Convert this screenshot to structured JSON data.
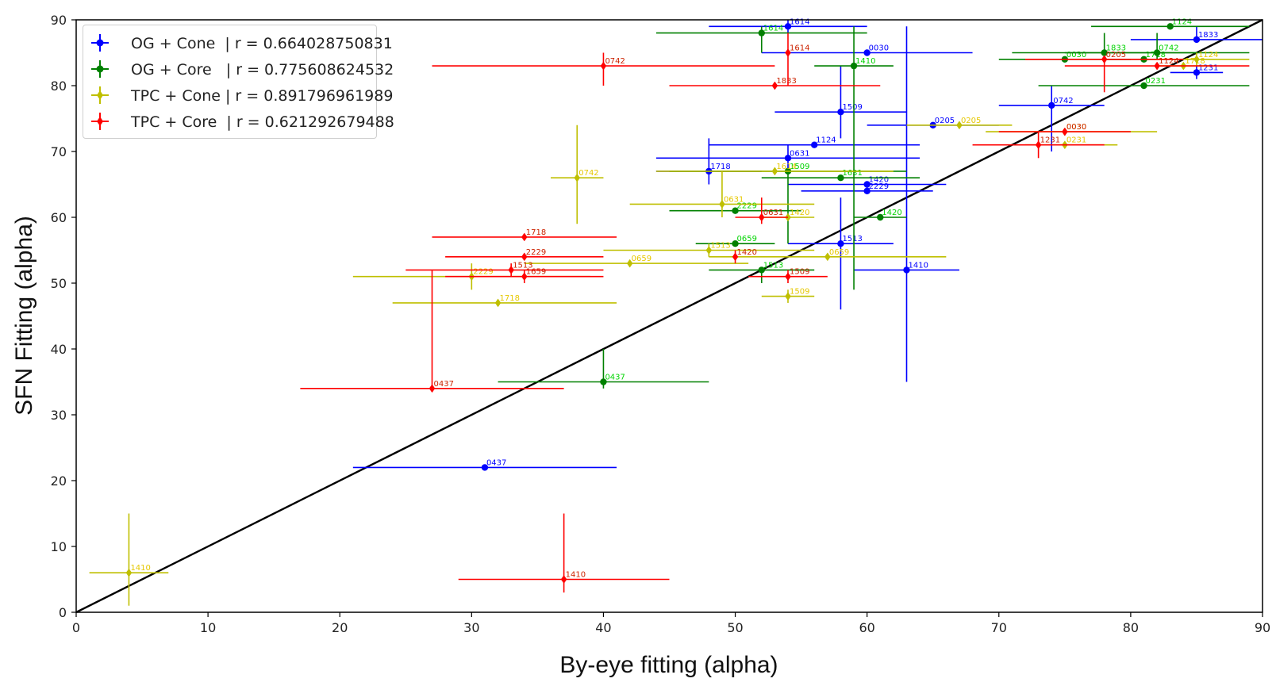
{
  "chart_data": {
    "type": "scatter",
    "title": "",
    "xlabel": "By-eye fitting (alpha)",
    "ylabel": "SFN Fitting (alpha)",
    "xlim": [
      0,
      90
    ],
    "ylim": [
      0,
      90
    ],
    "xticks": [
      "0",
      "10",
      "20",
      "30",
      "40",
      "50",
      "60",
      "70",
      "80",
      "90"
    ],
    "yticks": [
      "0",
      "10",
      "20",
      "30",
      "40",
      "50",
      "60",
      "70",
      "80",
      "90"
    ],
    "legend_position": "top-left",
    "reference_line": {
      "from": [
        0,
        0
      ],
      "to": [
        90,
        90
      ],
      "color": "#000000"
    },
    "series": [
      {
        "name": "OG + Cone  | r = 0.664028750831",
        "color": "#0000ff",
        "label_color": "#0000ff",
        "marker": "circle",
        "points": [
          {
            "label": "0437",
            "x": 31,
            "y": 22,
            "xerr": [
              10,
              10
            ],
            "yerr": [
              0,
              0
            ]
          },
          {
            "label": "1718",
            "x": 48,
            "y": 67,
            "xerr": [
              4,
              4
            ],
            "yerr": [
              2,
              5
            ]
          },
          {
            "label": "0631",
            "x": 54,
            "y": 69,
            "xerr": [
              10,
              10
            ],
            "yerr": [
              2,
              2
            ]
          },
          {
            "label": "1614",
            "x": 54,
            "y": 89,
            "xerr": [
              6,
              6
            ],
            "yerr": [
              1,
              1
            ]
          },
          {
            "label": "1124",
            "x": 56,
            "y": 71,
            "xerr": [
              8,
              8
            ],
            "yerr": [
              0,
              0
            ]
          },
          {
            "label": "1509",
            "x": 58,
            "y": 76,
            "xerr": [
              5,
              5
            ],
            "yerr": [
              4,
              7
            ]
          },
          {
            "label": "1513",
            "x": 58,
            "y": 56,
            "xerr": [
              4,
              4
            ],
            "yerr": [
              10,
              7
            ]
          },
          {
            "label": "0030",
            "x": 60,
            "y": 85,
            "xerr": [
              8,
              8
            ],
            "yerr": [
              0,
              0
            ]
          },
          {
            "label": "1420",
            "x": 60,
            "y": 65,
            "xerr": [
              6,
              6
            ],
            "yerr": [
              0,
              0
            ]
          },
          {
            "label": "2229",
            "x": 60,
            "y": 64,
            "xerr": [
              5,
              5
            ],
            "yerr": [
              0,
              0
            ]
          },
          {
            "label": "1410",
            "x": 63,
            "y": 52,
            "xerr": [
              4,
              4
            ],
            "yerr": [
              17,
              37
            ]
          },
          {
            "label": "0205",
            "x": 65,
            "y": 74,
            "xerr": [
              5,
              5
            ],
            "yerr": [
              0,
              0
            ]
          },
          {
            "label": "0742",
            "x": 74,
            "y": 77,
            "xerr": [
              4,
              4
            ],
            "yerr": [
              7,
              3
            ]
          },
          {
            "label": "1833",
            "x": 85,
            "y": 87,
            "xerr": [
              5,
              5
            ],
            "yerr": [
              0,
              2
            ]
          },
          {
            "label": "1231",
            "x": 85,
            "y": 82,
            "xerr": [
              2,
              2
            ],
            "yerr": [
              1,
              1
            ]
          }
        ]
      },
      {
        "name": "OG + Core   | r = 0.775608624532",
        "color": "#008000",
        "label_color": "#00d400",
        "marker": "circle",
        "points": [
          {
            "label": "0437",
            "x": 40,
            "y": 35,
            "xerr": [
              8,
              8
            ],
            "yerr": [
              1,
              5
            ]
          },
          {
            "label": "0659",
            "x": 50,
            "y": 56,
            "xerr": [
              3,
              3
            ],
            "yerr": [
              0,
              0
            ]
          },
          {
            "label": "2229",
            "x": 50,
            "y": 61,
            "xerr": [
              5,
              5
            ],
            "yerr": [
              0,
              0
            ]
          },
          {
            "label": "1513",
            "x": 52,
            "y": 52,
            "xerr": [
              4,
              4
            ],
            "yerr": [
              2,
              0
            ]
          },
          {
            "label": "1614",
            "x": 52,
            "y": 88,
            "xerr": [
              8,
              8
            ],
            "yerr": [
              3,
              1
            ]
          },
          {
            "label": "1509",
            "x": 54,
            "y": 67,
            "xerr": [
              9,
              9
            ],
            "yerr": [
              11,
              0
            ]
          },
          {
            "label": "1631",
            "x": 58,
            "y": 66,
            "xerr": [
              6,
              6
            ],
            "yerr": [
              0,
              0
            ]
          },
          {
            "label": "1410",
            "x": 59,
            "y": 83,
            "xerr": [
              3,
              3
            ],
            "yerr": [
              34,
              6
            ]
          },
          {
            "label": "1420",
            "x": 61,
            "y": 60,
            "xerr": [
              2,
              2
            ],
            "yerr": [
              0,
              0
            ]
          },
          {
            "label": "0030",
            "x": 75,
            "y": 84,
            "xerr": [
              5,
              5
            ],
            "yerr": [
              0,
              0
            ]
          },
          {
            "label": "1833",
            "x": 78,
            "y": 85,
            "xerr": [
              7,
              7
            ],
            "yerr": [
              0,
              3
            ]
          },
          {
            "label": "0231",
            "x": 81,
            "y": 80,
            "xerr": [
              8,
              8
            ],
            "yerr": [
              0,
              0
            ]
          },
          {
            "label": "1718",
            "x": 81,
            "y": 84,
            "xerr": [
              3,
              3
            ],
            "yerr": [
              0,
              0
            ]
          },
          {
            "label": "0742",
            "x": 82,
            "y": 85,
            "xerr": [
              7,
              7
            ],
            "yerr": [
              1,
              3
            ]
          },
          {
            "label": "1124",
            "x": 83,
            "y": 89,
            "xerr": [
              6,
              6
            ],
            "yerr": [
              0,
              0
            ]
          }
        ]
      },
      {
        "name": "TPC + Cone | r = 0.891796961989",
        "color": "#bfbf00",
        "label_color": "#e6c800",
        "marker": "diamond",
        "points": [
          {
            "label": "1410",
            "x": 4,
            "y": 6,
            "xerr": [
              3,
              3
            ],
            "yerr": [
              5,
              9
            ]
          },
          {
            "label": "2229",
            "x": 30,
            "y": 51,
            "xerr": [
              9,
              9
            ],
            "yerr": [
              2,
              2
            ]
          },
          {
            "label": "1718",
            "x": 32,
            "y": 47,
            "xerr": [
              8,
              9
            ],
            "yerr": [
              0,
              0
            ]
          },
          {
            "label": "0742",
            "x": 38,
            "y": 66,
            "xerr": [
              2,
              2
            ],
            "yerr": [
              7,
              8
            ]
          },
          {
            "label": "0659",
            "x": 42,
            "y": 53,
            "xerr": [
              8,
              9
            ],
            "yerr": [
              0,
              0
            ]
          },
          {
            "label": "1513",
            "x": 48,
            "y": 55,
            "xerr": [
              8,
              8
            ],
            "yerr": [
              1,
              1
            ]
          },
          {
            "label": "0631",
            "x": 49,
            "y": 62,
            "xerr": [
              7,
              7
            ],
            "yerr": [
              2,
              5
            ]
          },
          {
            "label": "1614",
            "x": 53,
            "y": 67,
            "xerr": [
              9,
              9
            ],
            "yerr": [
              0,
              0
            ]
          },
          {
            "label": "1420",
            "x": 54,
            "y": 60,
            "xerr": [
              2,
              2
            ],
            "yerr": [
              0,
              0
            ]
          },
          {
            "label": "1509",
            "x": 54,
            "y": 48,
            "xerr": [
              2,
              2
            ],
            "yerr": [
              1,
              1
            ]
          },
          {
            "label": "0659",
            "x": 57,
            "y": 54,
            "xerr": [
              9,
              9
            ],
            "yerr": [
              0,
              0
            ]
          },
          {
            "label": "0205",
            "x": 67,
            "y": 74,
            "xerr": [
              4,
              4
            ],
            "yerr": [
              0,
              0
            ]
          },
          {
            "label": "0231",
            "x": 75,
            "y": 71,
            "xerr": [
              3,
              4
            ],
            "yerr": [
              0,
              0
            ]
          },
          {
            "label": "0030",
            "x": 75,
            "y": 73,
            "xerr": [
              6,
              7
            ],
            "yerr": [
              0,
              0
            ]
          },
          {
            "label": "1718",
            "x": 84,
            "y": 83,
            "xerr": [
              2,
              2
            ],
            "yerr": [
              0,
              0
            ]
          },
          {
            "label": "1124",
            "x": 85,
            "y": 84,
            "xerr": [
              4,
              4
            ],
            "yerr": [
              1,
              1
            ]
          }
        ]
      },
      {
        "name": "TPC + Core  | r = 0.621292679488",
        "color": "#ff0000",
        "label_color": "#cc2200",
        "marker": "diamond",
        "points": [
          {
            "label": "0437",
            "x": 27,
            "y": 34,
            "xerr": [
              10,
              10
            ],
            "yerr": [
              0,
              18
            ]
          },
          {
            "label": "1513",
            "x": 33,
            "y": 52,
            "xerr": [
              8,
              7
            ],
            "yerr": [
              1,
              1
            ]
          },
          {
            "label": "1659",
            "x": 34,
            "y": 51,
            "xerr": [
              6,
              6
            ],
            "yerr": [
              1,
              1
            ]
          },
          {
            "label": "2229",
            "x": 34,
            "y": 54,
            "xerr": [
              6,
              6
            ],
            "yerr": [
              0,
              0
            ]
          },
          {
            "label": "1718",
            "x": 34,
            "y": 57,
            "xerr": [
              7,
              7
            ],
            "yerr": [
              0,
              0
            ]
          },
          {
            "label": "1410",
            "x": 37,
            "y": 5,
            "xerr": [
              8,
              8
            ],
            "yerr": [
              2,
              10
            ]
          },
          {
            "label": "0742",
            "x": 40,
            "y": 83,
            "xerr": [
              13,
              13
            ],
            "yerr": [
              3,
              2
            ]
          },
          {
            "label": "1420",
            "x": 50,
            "y": 54,
            "xerr": [
              0,
              0
            ],
            "yerr": [
              1,
              1
            ]
          },
          {
            "label": "0631",
            "x": 52,
            "y": 60,
            "xerr": [
              2,
              2
            ],
            "yerr": [
              1,
              3
            ]
          },
          {
            "label": "1833",
            "x": 53,
            "y": 80,
            "xerr": [
              8,
              8
            ],
            "yerr": [
              0,
              0
            ]
          },
          {
            "label": "1509",
            "x": 54,
            "y": 51,
            "xerr": [
              3,
              3
            ],
            "yerr": [
              1,
              1
            ]
          },
          {
            "label": "1614",
            "x": 54,
            "y": 85,
            "xerr": [
              0,
              0
            ],
            "yerr": [
              5,
              3
            ]
          },
          {
            "label": "1231",
            "x": 73,
            "y": 71,
            "xerr": [
              5,
              5
            ],
            "yerr": [
              2,
              2
            ]
          },
          {
            "label": "0030",
            "x": 75,
            "y": 73,
            "xerr": [
              5,
              5
            ],
            "yerr": [
              0,
              0
            ]
          },
          {
            "label": "0205",
            "x": 78,
            "y": 84,
            "xerr": [
              6,
              6
            ],
            "yerr": [
              5,
              0
            ]
          },
          {
            "label": "1124",
            "x": 82,
            "y": 83,
            "xerr": [
              7,
              7
            ],
            "yerr": [
              0,
              0
            ]
          }
        ]
      }
    ]
  }
}
